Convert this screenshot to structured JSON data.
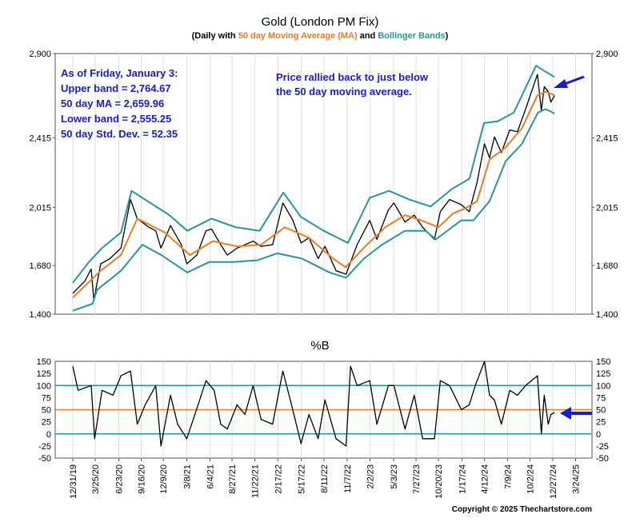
{
  "chart_data": [
    {
      "type": "line",
      "title": "Gold (London PM Fix)",
      "subtitle": {
        "prefix": "(Daily with ",
        "ma_label": "50 day Moving Average (MA)",
        "middle": " and ",
        "bb_label": "Bollinger Bands",
        "suffix": ")"
      },
      "ylim": [
        1400,
        2900
      ],
      "yticks": [
        "1,400",
        "1,680",
        "2,015",
        "2,415",
        "2,900"
      ],
      "series": [
        {
          "color": "#000000",
          "x": [
            "2019-12-31",
            "2020-02-15",
            "2020-03-10",
            "2020-03-20",
            "2020-04-15",
            "2020-05-20",
            "2020-07-01",
            "2020-08-06",
            "2020-09-01",
            "2020-10-15",
            "2020-11-10",
            "2020-11-30",
            "2021-01-05",
            "2021-02-15",
            "2021-03-08",
            "2021-04-15",
            "2021-05-20",
            "2021-06-10",
            "2021-07-15",
            "2021-08-09",
            "2021-09-15",
            "2021-11-15",
            "2021-12-15",
            "2022-01-28",
            "2022-03-08",
            "2022-04-15",
            "2022-05-16",
            "2022-06-15",
            "2022-07-20",
            "2022-08-15",
            "2022-09-26",
            "2022-11-03",
            "2022-12-15",
            "2023-02-01",
            "2023-02-28",
            "2023-04-13",
            "2023-05-04",
            "2023-06-15",
            "2023-07-20",
            "2023-08-21",
            "2023-10-05",
            "2023-10-27",
            "2023-12-01",
            "2024-01-15",
            "2024-02-14",
            "2024-03-15",
            "2024-04-12",
            "2024-05-01",
            "2024-05-20",
            "2024-06-15",
            "2024-07-17",
            "2024-08-15",
            "2024-09-15",
            "2024-10-30",
            "2024-11-14",
            "2024-11-25",
            "2024-12-10",
            "2024-12-20",
            "2025-01-03"
          ],
          "values": [
            1520,
            1590,
            1660,
            1480,
            1690,
            1720,
            1780,
            2060,
            1950,
            1900,
            1880,
            1780,
            1910,
            1800,
            1690,
            1740,
            1880,
            1890,
            1800,
            1740,
            1780,
            1820,
            1790,
            1800,
            2040,
            1940,
            1810,
            1840,
            1720,
            1790,
            1650,
            1630,
            1800,
            1940,
            1830,
            2000,
            2040,
            1930,
            1970,
            1900,
            1830,
            1990,
            2060,
            2030,
            1990,
            2160,
            2380,
            2300,
            2420,
            2330,
            2460,
            2450,
            2580,
            2780,
            2570,
            2710,
            2680,
            2620,
            2659
          ]
        },
        {
          "name": "50 day Moving Average (MA)",
          "color": "#f07a20",
          "x": [
            "2019-12-31",
            "2020-04-15",
            "2020-07-01",
            "2020-09-01",
            "2020-12-15",
            "2021-03-20",
            "2021-06-15",
            "2021-09-15",
            "2021-12-15",
            "2022-03-15",
            "2022-06-15",
            "2022-09-15",
            "2022-11-01",
            "2023-01-15",
            "2023-04-01",
            "2023-06-15",
            "2023-08-15",
            "2023-10-20",
            "2023-12-15",
            "2024-02-01",
            "2024-03-15",
            "2024-05-01",
            "2024-07-01",
            "2024-09-01",
            "2024-10-30",
            "2024-12-01",
            "2025-01-03"
          ],
          "values": [
            1495,
            1650,
            1740,
            1950,
            1870,
            1740,
            1820,
            1790,
            1800,
            1900,
            1840,
            1720,
            1670,
            1790,
            1900,
            1970,
            1940,
            1900,
            1980,
            2010,
            2050,
            2290,
            2360,
            2470,
            2660,
            2680,
            2660
          ]
        },
        {
          "name": "Bollinger Bands",
          "color": "#26969a",
          "x": [
            "2019-12-31",
            "2020-03-01",
            "2020-04-20",
            "2020-07-01",
            "2020-08-10",
            "2020-10-10",
            "2021-01-01",
            "2021-03-10",
            "2021-06-10",
            "2021-09-10",
            "2021-12-10",
            "2022-03-10",
            "2022-05-15",
            "2022-08-10",
            "2022-11-10",
            "2023-02-01",
            "2023-04-15",
            "2023-07-01",
            "2023-09-20",
            "2023-12-10",
            "2024-02-15",
            "2024-04-10",
            "2024-06-01",
            "2024-08-01",
            "2024-10-25",
            "2024-11-25",
            "2025-01-03"
          ],
          "values": [
            1580,
            1700,
            1780,
            1870,
            2110,
            2050,
            1970,
            1880,
            1950,
            1900,
            1880,
            2100,
            1960,
            1880,
            1810,
            2070,
            2110,
            2060,
            2020,
            2120,
            2180,
            2500,
            2510,
            2560,
            2830,
            2800,
            2765
          ]
        },
        {
          "name": "Bollinger Bands (lower)",
          "color": "#26969a",
          "x": [
            "2019-12-31",
            "2020-03-15",
            "2020-04-01",
            "2020-07-01",
            "2020-09-20",
            "2020-12-01",
            "2021-03-10",
            "2021-06-01",
            "2021-09-01",
            "2021-12-01",
            "2022-02-15",
            "2022-05-20",
            "2022-09-01",
            "2022-11-03",
            "2023-01-10",
            "2023-03-20",
            "2023-06-15",
            "2023-09-01",
            "2023-10-10",
            "2024-01-15",
            "2024-03-01",
            "2024-05-01",
            "2024-07-01",
            "2024-09-01",
            "2024-11-01",
            "2024-12-01",
            "2025-01-03"
          ],
          "values": [
            1420,
            1460,
            1540,
            1650,
            1800,
            1740,
            1640,
            1700,
            1700,
            1710,
            1750,
            1720,
            1640,
            1610,
            1720,
            1800,
            1880,
            1880,
            1830,
            1940,
            1940,
            2050,
            2280,
            2380,
            2560,
            2580,
            2555
          ]
        }
      ],
      "annotations": [
        [
          "As of Friday, January 3:",
          "Upper band = 2,764.67",
          "50 day MA = 2,659.96",
          "Lower band = 2,555.25",
          "50 day Std. Dev. = 52.35"
        ],
        [
          "Price rallied back to just below",
          "the 50 day moving average."
        ]
      ]
    },
    {
      "type": "line",
      "title": "%B",
      "ylim": [
        -50,
        150
      ],
      "yticks": [
        "-50",
        "-25",
        "0",
        "25",
        "50",
        "75",
        "100",
        "125",
        "150"
      ],
      "reference_lines": [
        {
          "value": 100,
          "color": "#26969a"
        },
        {
          "value": 50,
          "color": "#f07a20"
        },
        {
          "value": 0,
          "color": "#26969a"
        }
      ],
      "series": [
        {
          "color": "#000000",
          "x": [
            "2019-12-31",
            "2020-01-20",
            "2020-03-10",
            "2020-03-23",
            "2020-04-20",
            "2020-06-01",
            "2020-07-01",
            "2020-08-06",
            "2020-09-01",
            "2020-10-01",
            "2020-11-10",
            "2020-11-30",
            "2021-01-05",
            "2021-02-01",
            "2021-03-08",
            "2021-04-20",
            "2021-05-20",
            "2021-06-20",
            "2021-07-15",
            "2021-08-09",
            "2021-09-15",
            "2021-10-15",
            "2021-11-15",
            "2021-12-15",
            "2022-01-28",
            "2022-03-08",
            "2022-04-10",
            "2022-05-16",
            "2022-06-15",
            "2022-07-20",
            "2022-08-15",
            "2022-09-26",
            "2022-11-03",
            "2022-11-20",
            "2022-12-15",
            "2023-02-01",
            "2023-02-28",
            "2023-04-13",
            "2023-05-04",
            "2023-06-15",
            "2023-07-20",
            "2023-08-21",
            "2023-10-05",
            "2023-10-27",
            "2023-12-01",
            "2024-01-15",
            "2024-02-14",
            "2024-03-08",
            "2024-04-12",
            "2024-05-01",
            "2024-05-20",
            "2024-06-15",
            "2024-07-17",
            "2024-08-15",
            "2024-09-15",
            "2024-10-30",
            "2024-11-14",
            "2024-11-25",
            "2024-12-10",
            "2024-12-20",
            "2025-01-03"
          ],
          "values": [
            140,
            90,
            100,
            -10,
            90,
            80,
            120,
            130,
            20,
            60,
            100,
            -25,
            80,
            20,
            -10,
            60,
            110,
            90,
            20,
            10,
            60,
            40,
            100,
            30,
            20,
            130,
            60,
            -20,
            40,
            -10,
            70,
            -10,
            -25,
            140,
            100,
            110,
            20,
            100,
            100,
            10,
            80,
            -10,
            -10,
            110,
            100,
            50,
            60,
            100,
            150,
            80,
            70,
            20,
            90,
            80,
            100,
            120,
            0,
            80,
            20,
            40,
            44
          ]
        }
      ],
      "categories": [
        "12/31/19",
        "3/25/20",
        "6/23/20",
        "9/16/20",
        "12/9/20",
        "3/8/21",
        "6/4/21",
        "8/27/21",
        "11/22/21",
        "2/17/22",
        "5/17/22",
        "8/11/22",
        "11/7/22",
        "2/2/23",
        "5/3/23",
        "7/27/23",
        "10/20/23",
        "1/17/24",
        "4/12/24",
        "7/9/24",
        "10/2/24",
        "12/27/24",
        "3/24/25"
      ]
    }
  ],
  "copyright": "Copyright © 2025 Thechartstore.com"
}
